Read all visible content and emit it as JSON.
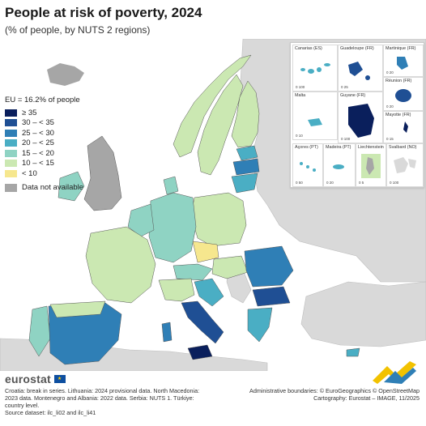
{
  "header": {
    "title": "People at risk of poverty, 2024",
    "subtitle": "(% of people, by NUTS 2 regions)"
  },
  "legend": {
    "title": "EU = 16.2% of people",
    "classes": [
      {
        "label": "≥ 35",
        "color": "#0a1f5c"
      },
      {
        "label": "30 – < 35",
        "color": "#1f4f94"
      },
      {
        "label": "25 – < 30",
        "color": "#2f7fb6"
      },
      {
        "label": "20 – < 25",
        "color": "#4aaec4"
      },
      {
        "label": "15 – < 20",
        "color": "#8fd3c3"
      },
      {
        "label": "10 – < 15",
        "color": "#cbe8b2"
      },
      {
        "label": "< 10",
        "color": "#f6e78e"
      }
    ],
    "not_available": {
      "label": "Data not available",
      "color": "#a6a6a6"
    }
  },
  "insets": [
    {
      "label": "Canarias (ES)",
      "scale": "0   100"
    },
    {
      "label": "Guadeloupe (FR)",
      "scale": "0   25"
    },
    {
      "label": "Martinique (FR)",
      "scale": "0   20"
    },
    {
      "label": "Réunion (FR)",
      "scale": "0   20"
    },
    {
      "label": "Malta",
      "scale": "0   10"
    },
    {
      "label": "Guyane (FR)",
      "scale": "0   100"
    },
    {
      "label": "Mayotte (FR)",
      "scale": "0   15"
    },
    {
      "label": "Açores (PT)",
      "scale": "0   50"
    },
    {
      "label": "Madeira (PT)",
      "scale": "0   20"
    },
    {
      "label": "Liechtenstein",
      "scale": "0   5"
    },
    {
      "label": "Svalbard (NO)",
      "scale": "0   100"
    }
  ],
  "footer": {
    "brand": "eurostat",
    "notes": "Croatia: break in series. Lithuania: 2024 provisional data. North Macedonia: 2023 data. Montenegro and Albania: 2022 data. Serbia: NUTS 1. Türkiye: country level.",
    "source": "Source dataset: ilc_li02 and ilc_li41",
    "boundaries": "Administrative boundaries: © EuroGeographics © OpenStreetMap",
    "cartography": "Cartography: Eurostat – IMAGE, 11/2025"
  },
  "colors": {
    "sea": "#ffffff",
    "non_eu_land": "#d9d9d9",
    "border": "#555555"
  }
}
